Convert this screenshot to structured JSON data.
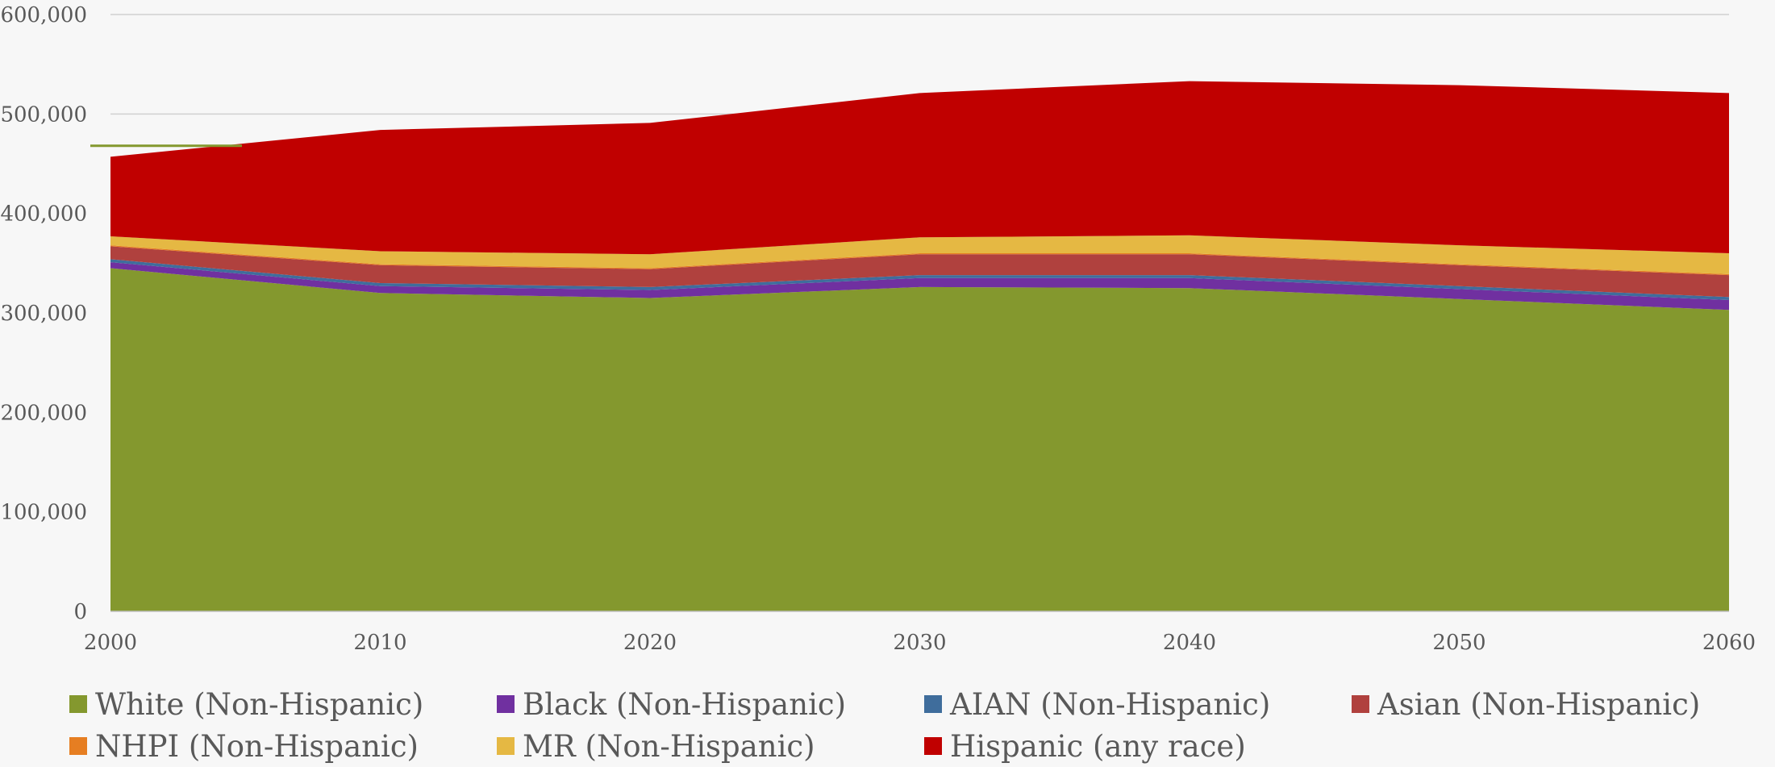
{
  "chart_data": {
    "type": "area",
    "stacked": true,
    "title": "",
    "xlabel": "",
    "ylabel": "",
    "x": [
      "2000",
      "2010",
      "2020",
      "2030",
      "2040",
      "2050",
      "2060"
    ],
    "ylim": [
      0,
      600000
    ],
    "yticks": [
      0,
      100000,
      200000,
      300000,
      400000,
      500000,
      600000
    ],
    "ytick_labels": [
      "0",
      "100,000",
      "200,000",
      "300,000",
      "400,000",
      "500,000",
      "600,000"
    ],
    "grid": true,
    "legend_position": "bottom",
    "series": [
      {
        "name": "White (Non-Hispanic)",
        "color": "#84982e",
        "values": [
          345000,
          320000,
          315000,
          326000,
          325000,
          314000,
          303000
        ]
      },
      {
        "name": "Black (Non-Hispanic)",
        "color": "#7030a0",
        "values": [
          6000,
          7000,
          8000,
          9000,
          10000,
          10000,
          10000
        ]
      },
      {
        "name": "AIAN (Non-Hispanic)",
        "color": "#3f6d9c",
        "values": [
          3000,
          3000,
          3000,
          3000,
          3000,
          3000,
          3000
        ]
      },
      {
        "name": "Asian (Non-Hispanic)",
        "color": "#b0413e",
        "values": [
          13000,
          18000,
          18000,
          21000,
          21000,
          21000,
          22000
        ]
      },
      {
        "name": "NHPI (Non-Hispanic)",
        "color": "#e67e22",
        "values": [
          1000,
          1000,
          1000,
          1000,
          1000,
          1000,
          1000
        ]
      },
      {
        "name": "MR (Non-Hispanic)",
        "color": "#e5b843",
        "values": [
          9000,
          13000,
          14000,
          16000,
          18000,
          19000,
          21000
        ]
      },
      {
        "name": "Hispanic (any race)",
        "color": "#c00000",
        "values": [
          80000,
          122000,
          132000,
          145000,
          155000,
          161000,
          161000
        ]
      }
    ],
    "reference_line": {
      "value": 468000,
      "color": "#84982e"
    }
  }
}
